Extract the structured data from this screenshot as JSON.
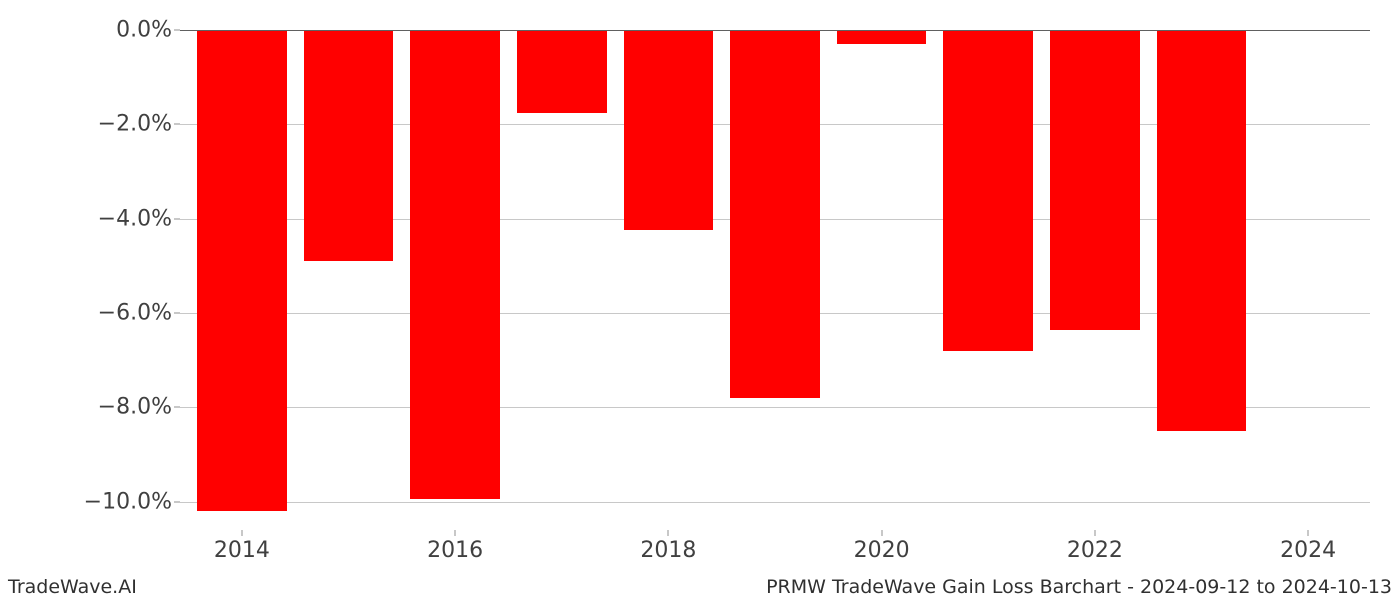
{
  "chart": {
    "type": "bar",
    "years": [
      2014,
      2015,
      2016,
      2017,
      2018,
      2019,
      2020,
      2021,
      2022,
      2023,
      2024
    ],
    "values": [
      -10.2,
      -4.9,
      -9.95,
      -1.75,
      -4.25,
      -7.8,
      -0.3,
      -6.8,
      -6.35,
      -8.5,
      0
    ],
    "bar_color": "#ff0000",
    "bar_width": 0.84,
    "background_color": "#ffffff",
    "grid_color": "#c8c8c8",
    "ylim": [
      -10.6,
      0.0
    ],
    "yticks": [
      0.0,
      -2.0,
      -4.0,
      -6.0,
      -8.0,
      -10.0
    ],
    "ytick_labels": [
      "0.0%",
      "−2.0%",
      "−4.0%",
      "−6.0%",
      "−8.0%",
      "−10.0%"
    ],
    "xticks": [
      2014,
      2016,
      2018,
      2020,
      2022,
      2024
    ],
    "xtick_labels": [
      "2014",
      "2016",
      "2018",
      "2020",
      "2022",
      "2024"
    ],
    "tick_fontsize": 22,
    "tick_color": "#404040",
    "footer_fontsize": 19
  },
  "footer": {
    "left": "TradeWave.AI",
    "right": "PRMW TradeWave Gain Loss Barchart - 2024-09-12 to 2024-10-13"
  }
}
